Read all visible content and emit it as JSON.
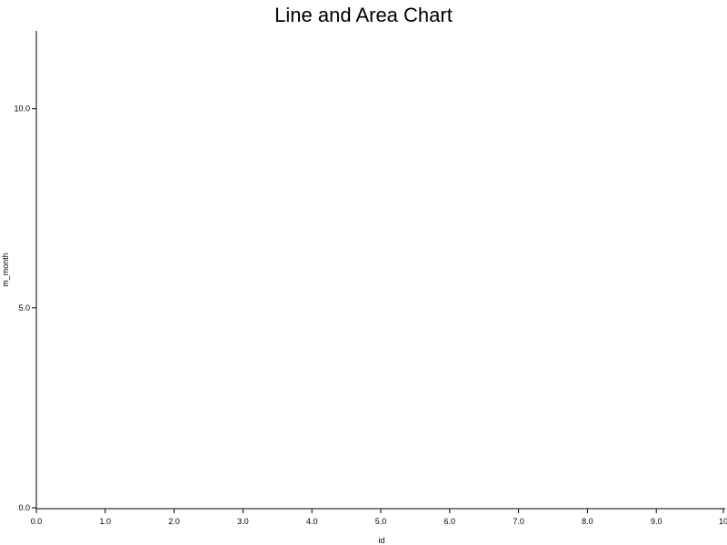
{
  "chart_data": {
    "type": "area",
    "title": "Line and Area Chart",
    "xlabel": "id",
    "ylabel": "m_month",
    "xlim": [
      0,
      10
    ],
    "ylim": [
      0,
      12
    ],
    "x_ticks": [
      "0.0",
      "1.0",
      "2.0",
      "3.0",
      "4.0",
      "5.0",
      "6.0",
      "7.0",
      "8.0",
      "9.0",
      "10"
    ],
    "y_ticks": [
      "0.0",
      "5.0",
      "10.0"
    ],
    "grid": false,
    "series": []
  }
}
